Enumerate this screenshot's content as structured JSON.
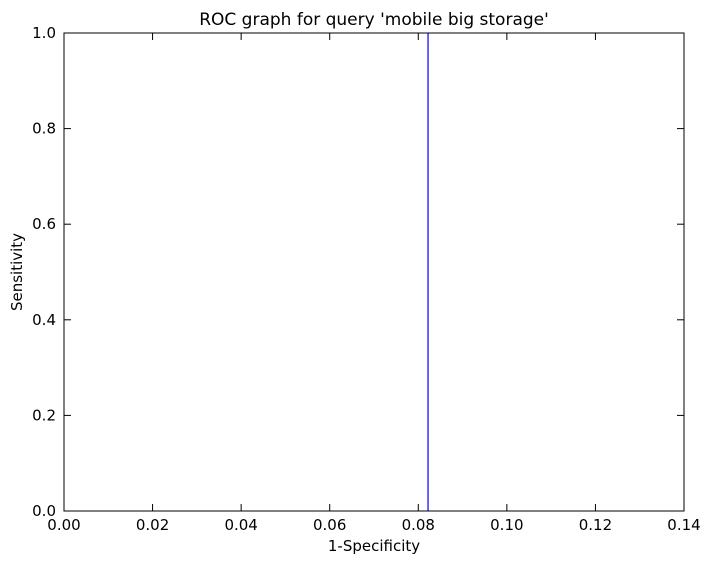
{
  "chart_data": {
    "type": "line",
    "title": "ROC graph for query 'mobile big storage'",
    "xlabel": "1-Specificity",
    "ylabel": "Sensitivity",
    "xlim": [
      0.0,
      0.14
    ],
    "ylim": [
      0.0,
      1.0
    ],
    "x_ticks": [
      "0.00",
      "0.02",
      "0.04",
      "0.06",
      "0.08",
      "0.10",
      "0.12",
      "0.14"
    ],
    "y_ticks": [
      "0.0",
      "0.2",
      "0.4",
      "0.6",
      "0.8",
      "1.0"
    ],
    "grid": false,
    "series": [
      {
        "color": "#0000ff",
        "x": [
          0.0822,
          0.0822
        ],
        "y": [
          0.0,
          1.0
        ]
      }
    ]
  }
}
